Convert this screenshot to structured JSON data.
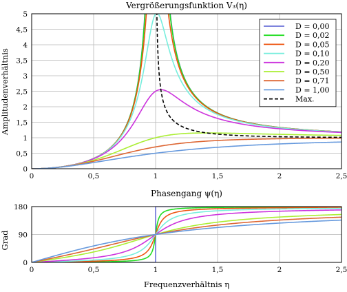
{
  "chart_data": [
    {
      "type": "line",
      "title": "Vergrößerungsfunktion V₃(η)",
      "xlabel": "",
      "ylabel": "Amplitudenverhältnis",
      "xlim": [
        0,
        2.5
      ],
      "ylim": [
        0,
        5
      ],
      "xticks": [
        0,
        0.5,
        1,
        1.5,
        2,
        2.5
      ],
      "xticklabels": [
        "0",
        "0,5",
        "1",
        "1,5",
        "2",
        "2,5"
      ],
      "yticks": [
        0,
        0.5,
        1,
        1.5,
        2,
        2.5,
        3,
        3.5,
        4,
        4.5,
        5
      ],
      "yticklabels": [
        "0",
        "0,5",
        "1",
        "1,5",
        "2",
        "2,5",
        "3",
        "3,5",
        "4",
        "4,5",
        "5"
      ],
      "grid": true,
      "legend_position": "top-right",
      "series": [
        {
          "name": "D = 0,00",
          "D": 0.0,
          "color": "#6b72d8",
          "style": "solid"
        },
        {
          "name": "D = 0,02",
          "D": 0.02,
          "color": "#22dd22",
          "style": "solid"
        },
        {
          "name": "D = 0,05",
          "D": 0.05,
          "color": "#ee5511",
          "style": "solid"
        },
        {
          "name": "D = 0,10",
          "D": 0.1,
          "color": "#77eedd",
          "style": "solid"
        },
        {
          "name": "D = 0,20",
          "D": 0.2,
          "color": "#cc33dd",
          "style": "solid"
        },
        {
          "name": "D = 0,50",
          "D": 0.5,
          "color": "#aaee33",
          "style": "solid"
        },
        {
          "name": "D = 0,71",
          "D": 0.71,
          "color": "#dd6633",
          "style": "solid"
        },
        {
          "name": "D = 1,00",
          "D": 1.0,
          "color": "#6699dd",
          "style": "solid"
        },
        {
          "name": "Max.",
          "color": "#000000",
          "style": "dashed"
        }
      ]
    },
    {
      "type": "line",
      "title": "Phasengang ψ(η)",
      "xlabel": "Frequenzverhältnis η",
      "ylabel": "Grad",
      "xlim": [
        0,
        2.5
      ],
      "ylim": [
        0,
        180
      ],
      "xticks": [
        0,
        0.5,
        1,
        1.5,
        2,
        2.5
      ],
      "xticklabels": [
        "0",
        "0,5",
        "1",
        "1,5",
        "2",
        "2,5"
      ],
      "yticks": [
        0,
        90,
        180
      ],
      "yticklabels": [
        "0",
        "90",
        "180"
      ],
      "grid": true,
      "series": [
        {
          "D": 0.0,
          "color": "#6b72d8"
        },
        {
          "D": 0.02,
          "color": "#22dd22"
        },
        {
          "D": 0.05,
          "color": "#ee5511"
        },
        {
          "D": 0.1,
          "color": "#77eedd"
        },
        {
          "D": 0.2,
          "color": "#cc33dd"
        },
        {
          "D": 0.5,
          "color": "#aaee33"
        },
        {
          "D": 0.71,
          "color": "#dd6633"
        },
        {
          "D": 1.0,
          "color": "#6699dd"
        }
      ]
    }
  ]
}
